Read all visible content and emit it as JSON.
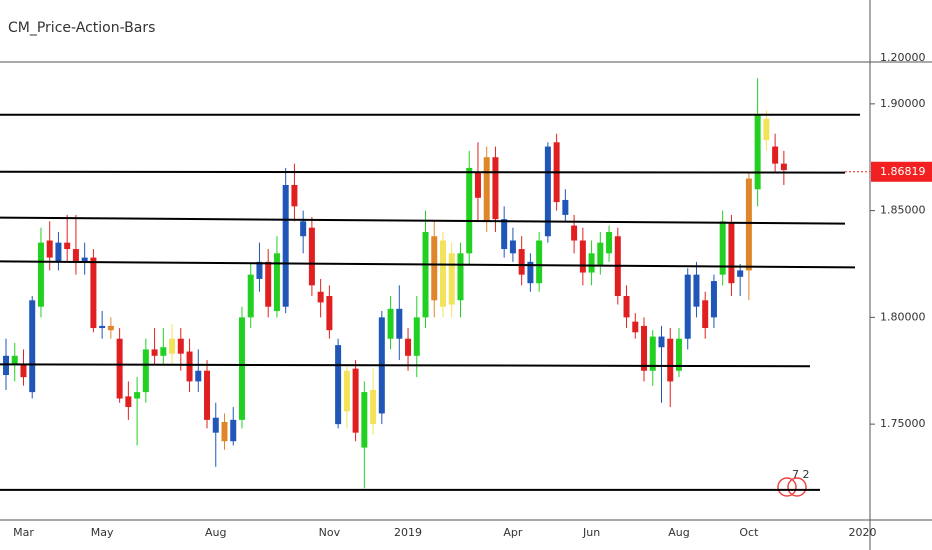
{
  "chart_data": {
    "type": "candlestick",
    "title": "CM_Price-Action-Bars",
    "top_label": "1.20000",
    "badge": "7 2",
    "categories": [
      null,
      null,
      "Mar",
      null,
      null,
      null,
      null,
      null,
      null,
      null,
      null,
      "May",
      null,
      null,
      null,
      null,
      null,
      null,
      null,
      null,
      null,
      null,
      null,
      null,
      "Aug",
      null,
      null,
      null,
      null,
      null,
      null,
      null,
      null,
      null,
      null,
      null,
      null,
      "Nov",
      null,
      null,
      null,
      null,
      null,
      null,
      null,
      null,
      "2019",
      null,
      null,
      null,
      null,
      null,
      null,
      null,
      null,
      null,
      null,
      null,
      "Apr",
      null,
      null,
      null,
      null,
      null,
      null,
      null,
      null,
      "Jun",
      null,
      null,
      null,
      null,
      null,
      null,
      null,
      null,
      null,
      "Aug",
      null,
      null,
      null,
      null,
      null,
      null,
      null,
      "Oct",
      null,
      null,
      null,
      null,
      null,
      null,
      null,
      null,
      null,
      null,
      null,
      null,
      "2020"
    ],
    "open": [
      1.773,
      1.782,
      1.778,
      1.765,
      1.805,
      1.836,
      1.826,
      1.835,
      1.832,
      1.826,
      1.828,
      1.796,
      1.796,
      1.79,
      1.763,
      1.762,
      1.765,
      1.785,
      1.782,
      1.783,
      1.79,
      1.784,
      1.77,
      1.775,
      1.753,
      1.751,
      1.742,
      1.752,
      1.8,
      1.818,
      1.826,
      1.803,
      1.805,
      1.862,
      1.838,
      1.842,
      1.812,
      1.81,
      1.787,
      1.775,
      1.776,
      1.739,
      1.75,
      1.755,
      1.79,
      1.804,
      1.79,
      1.782,
      1.8,
      1.838,
      1.836,
      1.83,
      1.808,
      1.83,
      1.868,
      1.845,
      1.875,
      1.846,
      1.836,
      1.832,
      1.826,
      1.816,
      1.838,
      1.882,
      1.855,
      1.843,
      1.836,
      1.821,
      1.824,
      1.83,
      1.838,
      1.81,
      1.798,
      1.796,
      1.775,
      1.791,
      1.79,
      1.775,
      1.79,
      1.82,
      1.808,
      1.8,
      1.82,
      1.844,
      1.819,
      1.822,
      1.86,
      1.893,
      1.88,
      1.872,
      null,
      null,
      null,
      null,
      null,
      null,
      null,
      null,
      null
    ],
    "high": [
      1.79,
      1.788,
      1.785,
      1.81,
      1.842,
      1.845,
      1.84,
      1.848,
      1.848,
      1.835,
      1.832,
      1.803,
      1.8,
      1.795,
      1.77,
      1.772,
      1.79,
      1.795,
      1.795,
      1.797,
      1.795,
      1.79,
      1.785,
      1.78,
      1.76,
      1.755,
      1.758,
      1.805,
      1.825,
      1.835,
      1.832,
      1.838,
      1.87,
      1.872,
      1.85,
      1.847,
      1.818,
      1.815,
      1.79,
      1.778,
      1.78,
      1.77,
      1.776,
      1.803,
      1.81,
      1.815,
      1.795,
      1.81,
      1.85,
      1.845,
      1.84,
      1.835,
      1.835,
      1.878,
      1.882,
      1.88,
      1.88,
      1.852,
      1.842,
      1.838,
      1.83,
      1.84,
      1.882,
      1.886,
      1.86,
      1.848,
      1.842,
      1.836,
      1.84,
      1.843,
      1.842,
      1.815,
      1.802,
      1.8,
      1.794,
      1.796,
      1.795,
      1.795,
      1.823,
      1.826,
      1.812,
      1.82,
      1.85,
      1.848,
      1.825,
      1.868,
      1.912,
      1.897,
      1.886,
      1.878,
      null,
      null,
      null,
      null,
      null,
      null,
      null,
      null,
      null
    ],
    "low": [
      1.766,
      1.77,
      1.768,
      1.762,
      1.8,
      1.822,
      1.822,
      1.826,
      1.82,
      1.82,
      1.793,
      1.79,
      1.79,
      1.76,
      1.752,
      1.74,
      1.76,
      1.778,
      1.778,
      1.778,
      1.775,
      1.765,
      1.765,
      1.748,
      1.73,
      1.738,
      1.74,
      1.748,
      1.795,
      1.812,
      1.8,
      1.8,
      1.802,
      1.845,
      1.83,
      1.81,
      1.8,
      1.79,
      1.748,
      1.748,
      1.742,
      1.72,
      1.745,
      1.75,
      1.785,
      1.78,
      1.775,
      1.772,
      1.795,
      1.8,
      1.8,
      1.8,
      1.8,
      1.825,
      1.845,
      1.84,
      1.84,
      1.828,
      1.826,
      1.815,
      1.812,
      1.812,
      1.835,
      1.85,
      1.845,
      1.83,
      1.815,
      1.815,
      1.82,
      1.826,
      1.806,
      1.795,
      1.79,
      1.77,
      1.768,
      1.76,
      1.758,
      1.772,
      1.785,
      1.8,
      1.79,
      1.795,
      1.815,
      1.81,
      1.81,
      1.808,
      1.852,
      1.878,
      1.868,
      1.862,
      null,
      null,
      null,
      null,
      null,
      null,
      null,
      null,
      null
    ],
    "close": [
      1.782,
      1.778,
      1.772,
      1.808,
      1.835,
      1.828,
      1.835,
      1.832,
      1.826,
      1.828,
      1.795,
      1.795,
      1.794,
      1.762,
      1.758,
      1.765,
      1.785,
      1.782,
      1.786,
      1.79,
      1.783,
      1.77,
      1.775,
      1.752,
      1.746,
      1.742,
      1.752,
      1.8,
      1.82,
      1.826,
      1.805,
      1.83,
      1.862,
      1.852,
      1.845,
      1.815,
      1.807,
      1.794,
      1.75,
      1.756,
      1.746,
      1.765,
      1.766,
      1.8,
      1.804,
      1.79,
      1.782,
      1.8,
      1.84,
      1.808,
      1.805,
      1.806,
      1.83,
      1.87,
      1.856,
      1.875,
      1.846,
      1.832,
      1.83,
      1.82,
      1.816,
      1.836,
      1.88,
      1.854,
      1.848,
      1.836,
      1.821,
      1.83,
      1.835,
      1.84,
      1.81,
      1.8,
      1.793,
      1.775,
      1.791,
      1.786,
      1.77,
      1.79,
      1.82,
      1.805,
      1.795,
      1.817,
      1.845,
      1.816,
      1.822,
      1.865,
      1.895,
      1.883,
      1.872,
      1.869,
      null,
      null,
      null,
      null,
      null,
      null,
      null,
      null,
      null
    ],
    "colors": [
      "#1f56b8",
      "#22d022",
      "#e02020",
      "#1f56b8",
      "#22d022",
      "#e02020",
      "#1f56b8",
      "#e02020",
      "#e02020",
      "#1f56b8",
      "#e02020",
      "#1f56b8",
      "#e0862a",
      "#e02020",
      "#e02020",
      "#22d022",
      "#22d022",
      "#e02020",
      "#22d022",
      "#f2e35a",
      "#e02020",
      "#e02020",
      "#1f56b8",
      "#e02020",
      "#1f56b8",
      "#e0862a",
      "#1f56b8",
      "#22d022",
      "#22d022",
      "#1f56b8",
      "#e02020",
      "#22d022",
      "#1f56b8",
      "#e02020",
      "#1f56b8",
      "#e02020",
      "#e02020",
      "#e02020",
      "#1f56b8",
      "#f2e35a",
      "#e02020",
      "#22d022",
      "#f2e35a",
      "#1f56b8",
      "#22d022",
      "#1f56b8",
      "#e02020",
      "#22d022",
      "#22d022",
      "#e0862a",
      "#f2e35a",
      "#f2e35a",
      "#22d022",
      "#22d022",
      "#e02020",
      "#e0862a",
      "#e02020",
      "#1f56b8",
      "#1f56b8",
      "#e02020",
      "#1f56b8",
      "#22d022",
      "#1f56b8",
      "#e02020",
      "#1f56b8",
      "#e02020",
      "#e02020",
      "#22d022",
      "#22d022",
      "#22d022",
      "#e02020",
      "#e02020",
      "#e02020",
      "#e02020",
      "#22d022",
      "#1f56b8",
      "#e02020",
      "#22d022",
      "#1f56b8",
      "#1f56b8",
      "#e02020",
      "#1f56b8",
      "#22d022",
      "#e02020",
      "#1f56b8",
      "#e0862a",
      "#22d022",
      "#f2e35a",
      "#e02020",
      "#e02020",
      null,
      null,
      null,
      null,
      null,
      null,
      null,
      null,
      null
    ],
    "ylim": [
      1.7051,
      1.9196
    ],
    "yticks": [
      {
        "value": 1.75,
        "label": "1.75000"
      },
      {
        "value": 1.8,
        "label": "1.80000"
      },
      {
        "value": 1.85,
        "label": "1.85000"
      },
      {
        "value": 1.9,
        "label": "1.90000"
      }
    ],
    "drawings": [
      {
        "start": 1.8949,
        "end": 1.8949
      },
      {
        "start": 1.8682,
        "end": 1.8678
      },
      {
        "start": 1.8467,
        "end": 1.8439
      },
      {
        "start": 1.8262,
        "end": 1.8234
      },
      {
        "start": 1.778,
        "end": 1.7771
      },
      {
        "start": 1.7192,
        "end": 1.7192
      }
    ],
    "drawing_color": "#000000",
    "last_price": {
      "value": 1.86819,
      "label": "1.86819"
    },
    "last_price_color": "#f22020"
  }
}
